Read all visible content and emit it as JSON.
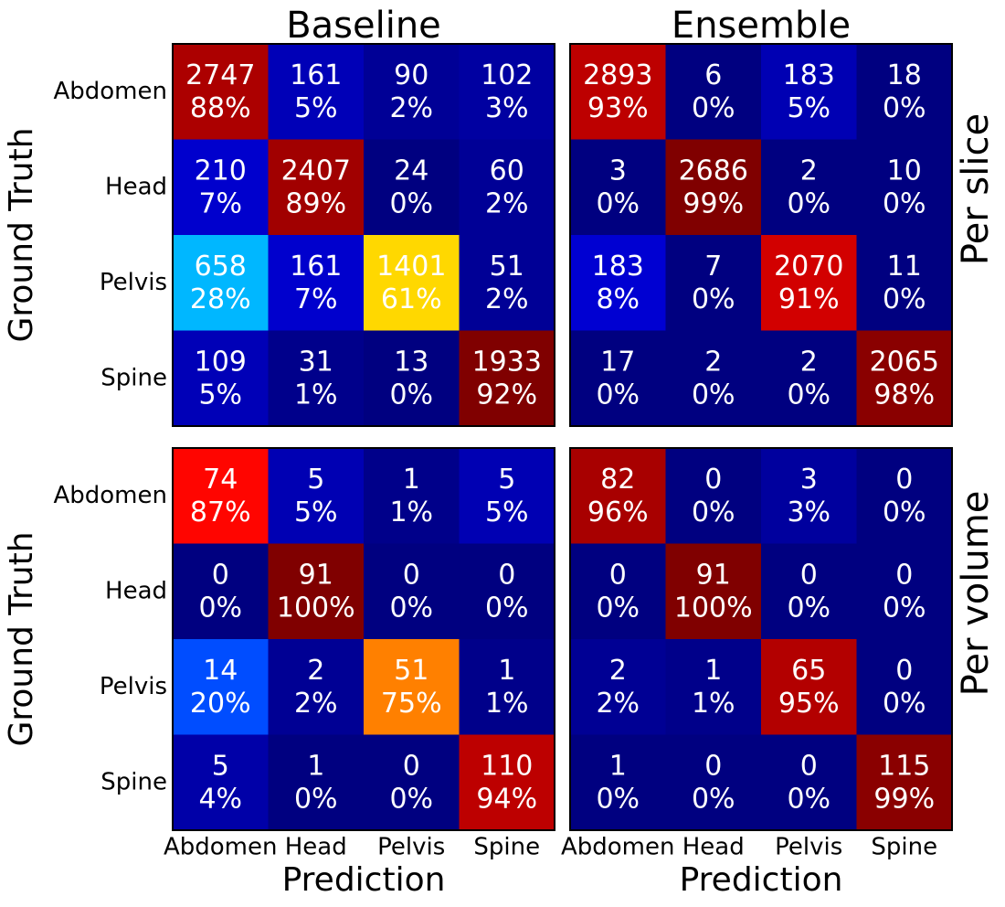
{
  "chart_data": [
    {
      "type": "heatmap",
      "title": "Baseline",
      "ylabel": "Ground Truth",
      "colormap": "jet",
      "y_categories": [
        "Abdomen",
        "Head",
        "Pelvis",
        "Spine"
      ],
      "values": [
        [
          2747,
          161,
          90,
          102
        ],
        [
          210,
          2407,
          24,
          60
        ],
        [
          658,
          161,
          1401,
          51
        ],
        [
          109,
          31,
          13,
          1933
        ]
      ],
      "percents": [
        [
          88,
          5,
          2,
          3
        ],
        [
          7,
          89,
          0,
          2
        ],
        [
          28,
          7,
          61,
          2
        ],
        [
          5,
          1,
          0,
          92
        ]
      ],
      "percent_labels": [
        [
          "88%",
          "5%",
          "2%",
          "3%"
        ],
        [
          "7%",
          "89%",
          "0%",
          "2%"
        ],
        [
          "28%",
          "7%",
          "61%",
          "2%"
        ],
        [
          "5%",
          "1%",
          "0%",
          "92%"
        ]
      ]
    },
    {
      "type": "heatmap",
      "title": "Ensemble",
      "row_title": "Per slice",
      "colormap": "jet",
      "values": [
        [
          2893,
          6,
          183,
          18
        ],
        [
          3,
          2686,
          2,
          10
        ],
        [
          183,
          7,
          2070,
          11
        ],
        [
          17,
          2,
          2,
          2065
        ]
      ],
      "percents": [
        [
          93,
          0,
          5,
          0
        ],
        [
          0,
          99,
          0,
          0
        ],
        [
          8,
          0,
          91,
          0
        ],
        [
          0,
          0,
          0,
          98
        ]
      ],
      "percent_labels": [
        [
          "93%",
          "0%",
          "5%",
          "0%"
        ],
        [
          "0%",
          "99%",
          "0%",
          "0%"
        ],
        [
          "8%",
          "0%",
          "91%",
          "0%"
        ],
        [
          "0%",
          "0%",
          "0%",
          "98%"
        ]
      ]
    },
    {
      "type": "heatmap",
      "ylabel": "Ground Truth",
      "xlabel": "Prediction",
      "colormap": "jet",
      "y_categories": [
        "Abdomen",
        "Head",
        "Pelvis",
        "Spine"
      ],
      "x_categories": [
        "Abdomen",
        "Head",
        "Pelvis",
        "Spine"
      ],
      "values": [
        [
          74,
          5,
          1,
          5
        ],
        [
          0,
          91,
          0,
          0
        ],
        [
          14,
          2,
          51,
          1
        ],
        [
          5,
          1,
          0,
          110
        ]
      ],
      "percents": [
        [
          87,
          5,
          1,
          5
        ],
        [
          0,
          100,
          0,
          0
        ],
        [
          20,
          2,
          75,
          1
        ],
        [
          4,
          0,
          0,
          94
        ]
      ],
      "percent_labels": [
        [
          "87%",
          "5%",
          "1%",
          "5%"
        ],
        [
          "0%",
          "100%",
          "0%",
          "0%"
        ],
        [
          "20%",
          "2%",
          "75%",
          "1%"
        ],
        [
          "4%",
          "0%",
          "0%",
          "94%"
        ]
      ]
    },
    {
      "type": "heatmap",
      "row_title": "Per volume",
      "xlabel": "Prediction",
      "colormap": "jet",
      "x_categories": [
        "Abdomen",
        "Head",
        "Pelvis",
        "Spine"
      ],
      "values": [
        [
          82,
          0,
          3,
          0
        ],
        [
          0,
          91,
          0,
          0
        ],
        [
          2,
          1,
          65,
          0
        ],
        [
          1,
          0,
          0,
          115
        ]
      ],
      "percents": [
        [
          96,
          0,
          3,
          0
        ],
        [
          0,
          100,
          0,
          0
        ],
        [
          2,
          1,
          95,
          0
        ],
        [
          0,
          0,
          0,
          99
        ]
      ],
      "percent_labels": [
        [
          "96%",
          "0%",
          "3%",
          "0%"
        ],
        [
          "0%",
          "100%",
          "0%",
          "0%"
        ],
        [
          "2%",
          "1%",
          "95%",
          "0%"
        ],
        [
          "0%",
          "0%",
          "0%",
          "99%"
        ]
      ]
    }
  ]
}
